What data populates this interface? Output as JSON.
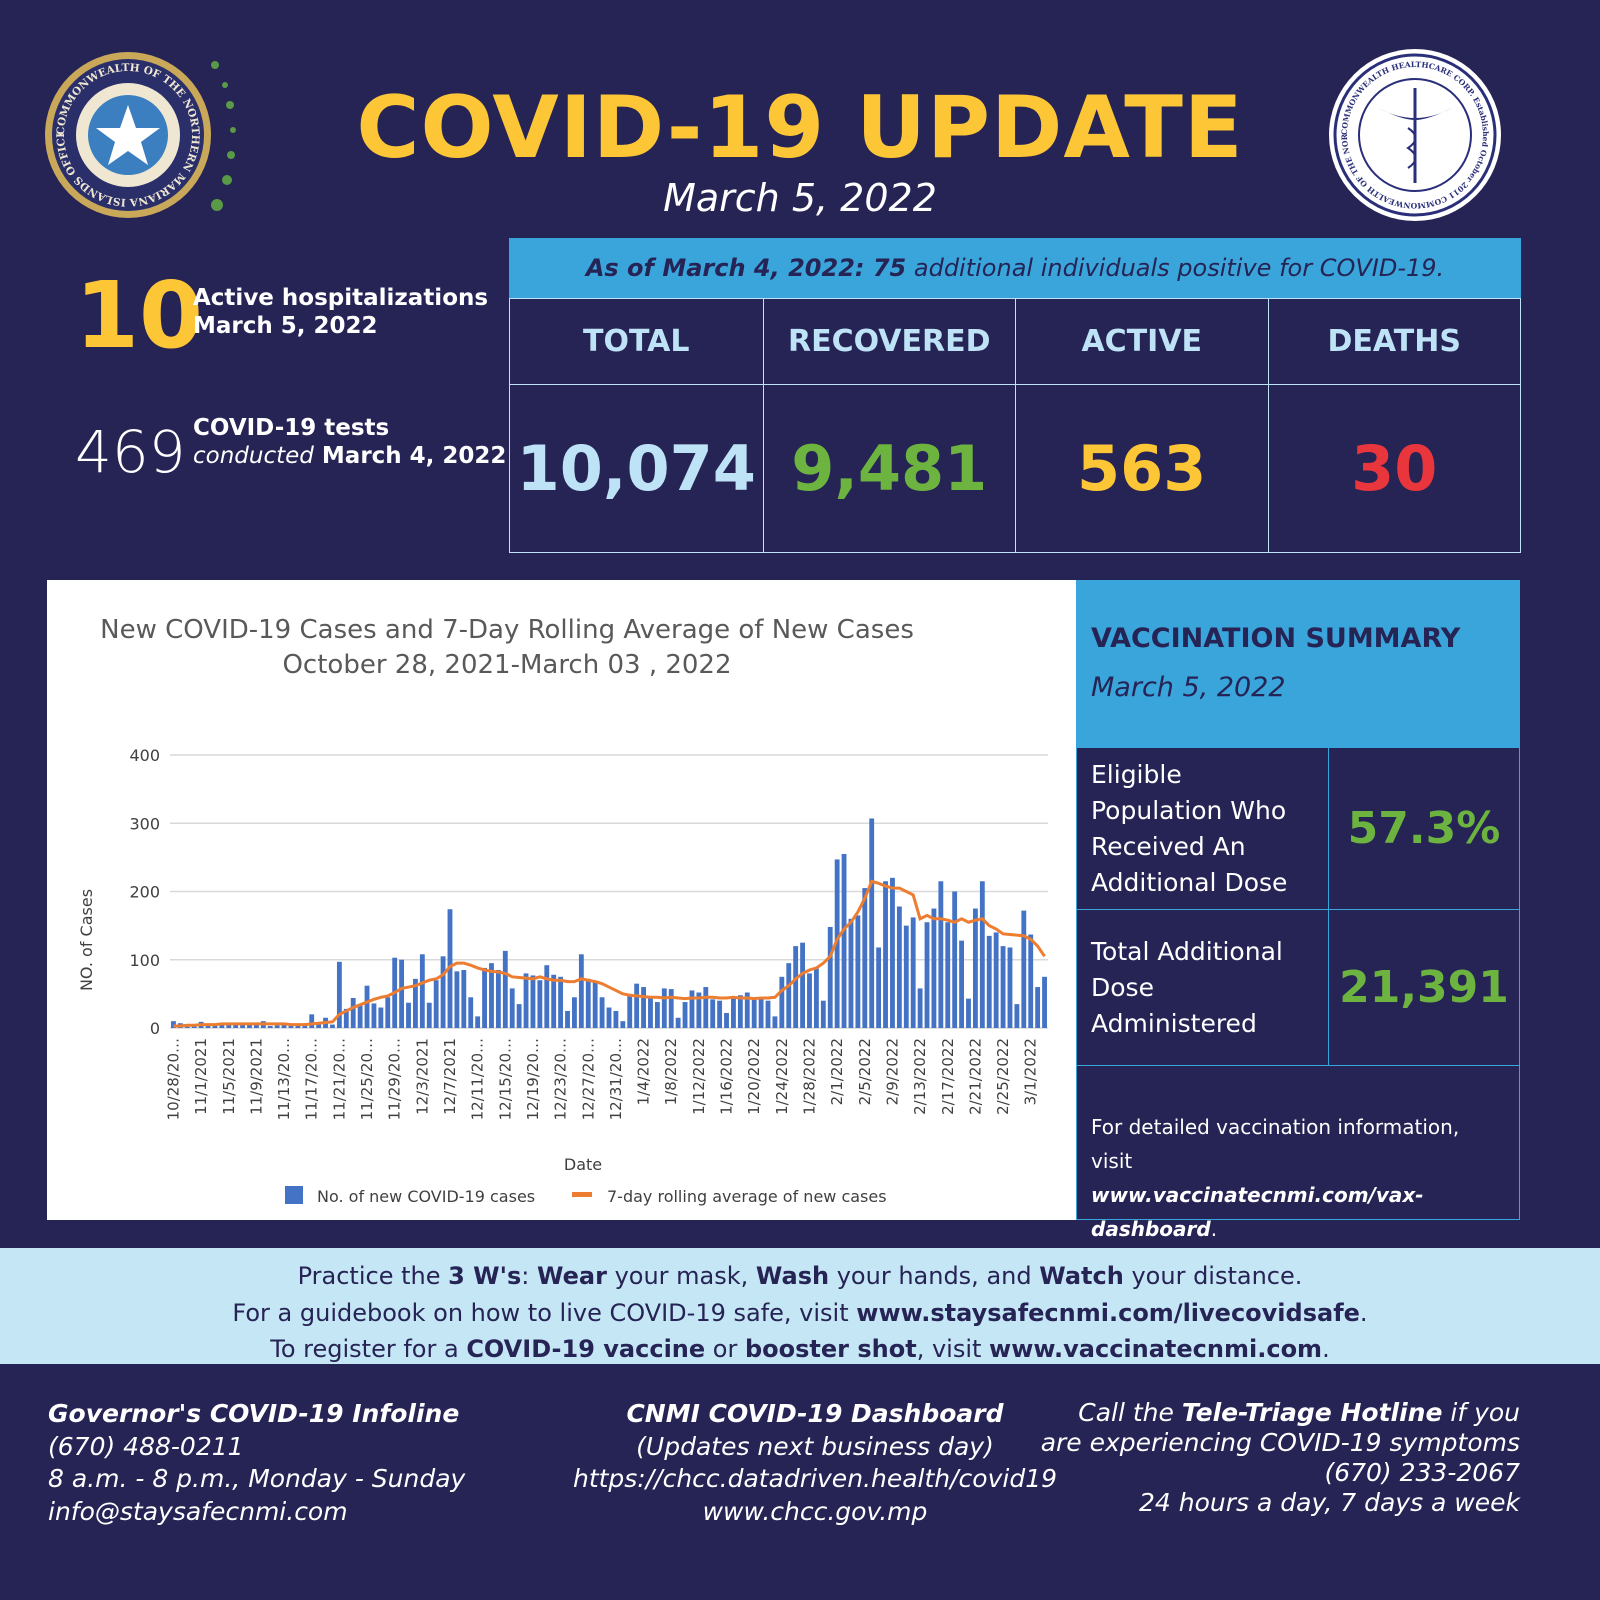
{
  "header": {
    "title": "COVID-19 UPDATE",
    "date": "March 5, 2022",
    "left_seal_text": "COMMONWEALTH OF THE NORTHERN MARIANA ISLANDS OFFICIAL SEAL",
    "right_seal_text": "COMMONWEALTH HEALTHCARE CORP. Established October 2011 COMMONWEALTH OF THE NORTHERN MARIANAS"
  },
  "hospital": {
    "count": "10",
    "line1": "Active hospitalizations",
    "line2": "March 5, 2022"
  },
  "tests": {
    "count": "469",
    "line1": "COVID-19 tests",
    "line2_italic": "conducted",
    "line2_bold": "March 4, 2022"
  },
  "summary": {
    "prefix": "As of March 4, 2022: 75",
    "suffix": " additional individuals positive for COVID-19.",
    "headers": [
      "TOTAL",
      "RECOVERED",
      "ACTIVE",
      "DEATHS"
    ],
    "values": [
      "10,074",
      "9,481",
      "563",
      "30"
    ],
    "colors": [
      "#bfe3f6",
      "#6cb33f",
      "#fcc636",
      "#e8363c"
    ]
  },
  "vaccination": {
    "title": "VACCINATION SUMMARY",
    "date": "March 5, 2022",
    "rows": [
      {
        "label": "Eligible Population Who Received An Additional Dose",
        "value": "57.3%"
      },
      {
        "label": "Total Additional Dose Administered",
        "value": "21,391"
      }
    ],
    "note": "For detailed vaccination information, visit",
    "link": "www.vaccinatecnmi.com/vax-dashboard",
    "link_suffix": "."
  },
  "band": {
    "l1": [
      "Practice the ",
      "3 W's",
      ": ",
      "Wear",
      " your mask, ",
      "Wash",
      " your hands, and ",
      "Watch",
      " your distance."
    ],
    "l2": [
      "For a guidebook on how to live COVID-19 safe, visit ",
      "www.staysafecnmi.com/livecovidsafe",
      "."
    ],
    "l3": [
      "To register for a ",
      "COVID-19 vaccine",
      " or ",
      "booster shot",
      ", visit ",
      "www.vaccinatecnmi.com",
      "."
    ]
  },
  "footer": {
    "left": {
      "title": "Governor's COVID-19 Infoline",
      "lines": [
        "(670) 488-0211",
        "8 a.m. - 8 p.m., Monday - Sunday",
        "info@staysafecnmi.com"
      ]
    },
    "center": {
      "title": "CNMI COVID-19 Dashboard",
      "lines": [
        "(Updates next business day)",
        "https://chcc.datadriven.health/covid19",
        "www.chcc.gov.mp"
      ]
    },
    "right": {
      "pre": "Call the ",
      "bold": "Tele-Triage Hotline",
      "post": " if you",
      "lines": [
        "are experiencing COVID-19 symptoms",
        "(670) 233-2067",
        "24 hours a day, 7 days a week"
      ]
    }
  },
  "chart_data": {
    "type": "bar",
    "title": "New COVID-19 Cases and 7-Day Rolling Average of New Cases",
    "subtitle": "October 28, 2021-March 03 , 2022",
    "xlabel": "Date",
    "ylabel": "NO. of Cases",
    "ylim": [
      0,
      400
    ],
    "yticks": [
      0,
      100,
      200,
      300,
      400
    ],
    "grid": true,
    "legend": "bottom",
    "start_date": "2021-10-28",
    "end_date": "2022-03-03",
    "tick_labels": [
      "10/28/20…",
      "11/1/2021",
      "11/5/2021",
      "11/9/2021",
      "11/13/20…",
      "11/17/20…",
      "11/21/20…",
      "11/25/20…",
      "11/29/20…",
      "12/3/2021",
      "12/7/2021",
      "12/11/20…",
      "12/15/20…",
      "12/19/20…",
      "12/23/20…",
      "12/27/20…",
      "12/31/20…",
      "1/4/2022",
      "1/8/2022",
      "1/12/2022",
      "1/16/2022",
      "1/20/2022",
      "1/24/2022",
      "1/28/2022",
      "2/1/2022",
      "2/5/2022",
      "2/9/2022",
      "2/13/2022",
      "2/17/2022",
      "2/21/2022",
      "2/25/2022",
      "3/1/2022"
    ],
    "series": [
      {
        "name": "No. of new COVID-19 cases",
        "type": "bar",
        "color": "#4472c4",
        "values": [
          10,
          7,
          2,
          4,
          9,
          3,
          5,
          6,
          5,
          6,
          7,
          5,
          8,
          10,
          3,
          4,
          5,
          4,
          3,
          6,
          20,
          8,
          15,
          5,
          97,
          28,
          44,
          35,
          62,
          36,
          30,
          45,
          103,
          100,
          37,
          72,
          108,
          37,
          70,
          105,
          174,
          83,
          85,
          45,
          17,
          88,
          95,
          85,
          113,
          58,
          35,
          80,
          77,
          70,
          92,
          78,
          75,
          25,
          45,
          108,
          72,
          68,
          45,
          30,
          25,
          10,
          50,
          65,
          60,
          45,
          38,
          58,
          57,
          15,
          38,
          55,
          52,
          60,
          42,
          40,
          22,
          44,
          48,
          52,
          45,
          44,
          40,
          17,
          75,
          95,
          120,
          125,
          80,
          87,
          40,
          148,
          247,
          255,
          160,
          165,
          205,
          307,
          118,
          215,
          220,
          178,
          150,
          162,
          58,
          155,
          175,
          215,
          155,
          200,
          128,
          43,
          175,
          215,
          135,
          140,
          120,
          118,
          35,
          172,
          137,
          60,
          75
        ]
      },
      {
        "name": "7-day rolling average of new cases",
        "type": "line",
        "color": "#ed7d31",
        "values": [
          3,
          3,
          4,
          4,
          5,
          5,
          5,
          6,
          6,
          6,
          6,
          6,
          6,
          6,
          6,
          6,
          6,
          5,
          5,
          5,
          6,
          7,
          8,
          9,
          20,
          25,
          30,
          34,
          38,
          42,
          45,
          47,
          52,
          58,
          60,
          62,
          66,
          70,
          72,
          78,
          90,
          95,
          95,
          92,
          88,
          85,
          83,
          82,
          80,
          75,
          74,
          73,
          72,
          75,
          72,
          70,
          70,
          68,
          68,
          72,
          70,
          68,
          65,
          60,
          55,
          50,
          48,
          47,
          46,
          45,
          45,
          44,
          45,
          44,
          43,
          44,
          44,
          45,
          45,
          44,
          44,
          45,
          44,
          44,
          43,
          44,
          44,
          45,
          55,
          62,
          72,
          80,
          85,
          88,
          95,
          105,
          130,
          145,
          155,
          170,
          190,
          215,
          212,
          208,
          205,
          205,
          200,
          195,
          160,
          165,
          160,
          160,
          158,
          155,
          160,
          155,
          158,
          160,
          150,
          145,
          138,
          137,
          136,
          135,
          130,
          120,
          105
        ]
      }
    ]
  }
}
